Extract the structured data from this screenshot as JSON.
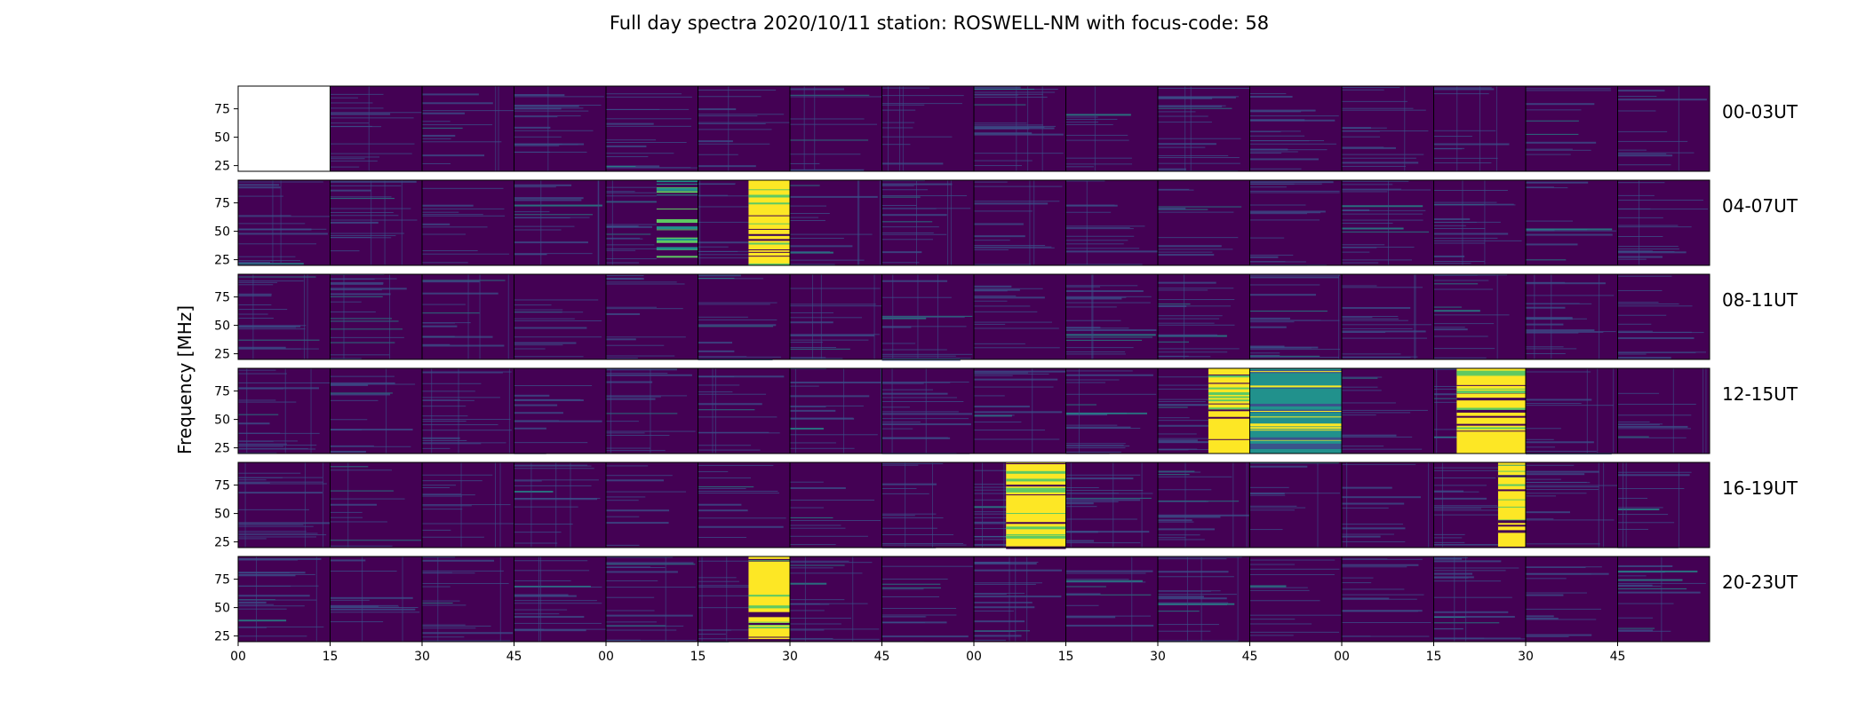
{
  "chart_data": {
    "type": "heatmap",
    "title": "Full day spectra 2020/10/11 station: ROSWELL-NM with focus-code: 58",
    "ylabel": "Frequency [MHz]",
    "xlabel": "",
    "ylim": [
      20,
      95
    ],
    "ytick_labels": [
      "25",
      "50",
      "75"
    ],
    "yticks": [
      25,
      50,
      75
    ],
    "xtick_labels": [
      "00",
      "15",
      "30",
      "45",
      "00",
      "15",
      "30",
      "45",
      "00",
      "15",
      "30",
      "45",
      "00",
      "15",
      "30",
      "45"
    ],
    "rows": [
      {
        "label": "00-03UT",
        "hours": [
          0,
          1,
          2,
          3
        ]
      },
      {
        "label": "04-07UT",
        "hours": [
          4,
          5,
          6,
          7
        ]
      },
      {
        "label": "08-11UT",
        "hours": [
          8,
          9,
          10,
          11
        ]
      },
      {
        "label": "12-15UT",
        "hours": [
          12,
          13,
          14,
          15
        ]
      },
      {
        "label": "16-19UT",
        "hours": [
          16,
          17,
          18,
          19
        ]
      },
      {
        "label": "20-23UT",
        "hours": [
          20,
          21,
          22,
          23
        ]
      }
    ],
    "panels_per_row": 16,
    "minutes_per_panel": 15,
    "missing_panels": [
      [
        0,
        0
      ]
    ],
    "burst_regions": [
      {
        "row": 1,
        "panel": 5,
        "start": 0.55,
        "end": 1.0,
        "level": "high"
      },
      {
        "row": 1,
        "panel": 4,
        "start": 0.55,
        "end": 1.0,
        "level": "low"
      },
      {
        "row": 3,
        "panel": 10,
        "start": 0.55,
        "end": 1.0,
        "level": "high"
      },
      {
        "row": 3,
        "panel": 11,
        "start": 0.0,
        "end": 1.0,
        "level": "mid"
      },
      {
        "row": 3,
        "panel": 13,
        "start": 0.25,
        "end": 1.0,
        "level": "high"
      },
      {
        "row": 4,
        "panel": 8,
        "start": 0.35,
        "end": 1.0,
        "level": "high"
      },
      {
        "row": 4,
        "panel": 13,
        "start": 0.7,
        "end": 1.0,
        "level": "high"
      },
      {
        "row": 5,
        "panel": 5,
        "start": 0.55,
        "end": 1.0,
        "level": "high"
      }
    ],
    "colormap": [
      "#440154",
      "#3b528b",
      "#21918c",
      "#5ec962",
      "#fde725"
    ],
    "grid": false,
    "legend": "none"
  }
}
